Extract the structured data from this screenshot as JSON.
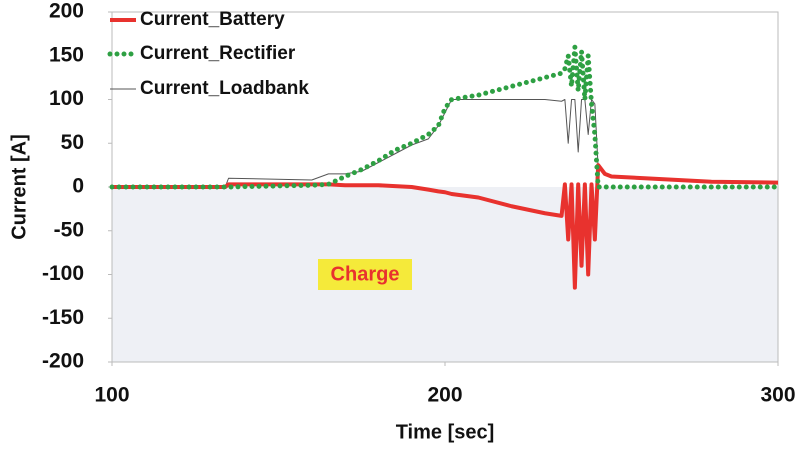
{
  "chart_data": {
    "type": "line",
    "xlabel": "Time [sec]",
    "ylabel": "Current [A]",
    "annotation": "Charge",
    "x": [
      100,
      134,
      135,
      160,
      165,
      170,
      175,
      180,
      185,
      190,
      195,
      198,
      200,
      202,
      210,
      220,
      230,
      235,
      236,
      237,
      238,
      239,
      240,
      241,
      242,
      243,
      244,
      245,
      246,
      248,
      250,
      260,
      280,
      300
    ],
    "series": [
      {
        "name": "Current_Battery",
        "color": "#e8322e",
        "style": "solid",
        "values": [
          0,
          0,
          3,
          3,
          3,
          2,
          2,
          2,
          1,
          0,
          -3,
          -5,
          -6,
          -8,
          -12,
          -22,
          -30,
          -33,
          3,
          -60,
          3,
          -115,
          3,
          -90,
          3,
          -100,
          3,
          -60,
          25,
          15,
          12,
          10,
          6,
          5
        ]
      },
      {
        "name": "Current_Rectifier",
        "color": "#2ea043",
        "style": "dotted",
        "values": [
          0,
          0,
          0,
          2,
          3,
          12,
          20,
          30,
          42,
          50,
          60,
          70,
          90,
          100,
          105,
          115,
          125,
          130,
          135,
          150,
          115,
          160,
          110,
          155,
          100,
          150,
          95,
          60,
          0,
          0,
          0,
          0,
          0,
          0
        ]
      },
      {
        "name": "Current_Loadbank",
        "color": "#555555",
        "style": "thin",
        "values": [
          0,
          0,
          10,
          8,
          15,
          15,
          18,
          28,
          38,
          48,
          55,
          70,
          85,
          100,
          100,
          100,
          100,
          98,
          100,
          50,
          100,
          100,
          40,
          100,
          100,
          60,
          100,
          95,
          22,
          15,
          13,
          10,
          6,
          4
        ]
      }
    ],
    "xlim": [
      100,
      300
    ],
    "xticks": [
      100,
      200,
      300
    ],
    "ylim": [
      -200,
      200
    ],
    "yticks": [
      -200,
      -150,
      -100,
      -50,
      0,
      50,
      100,
      150,
      200
    ],
    "legend": "top-left"
  }
}
